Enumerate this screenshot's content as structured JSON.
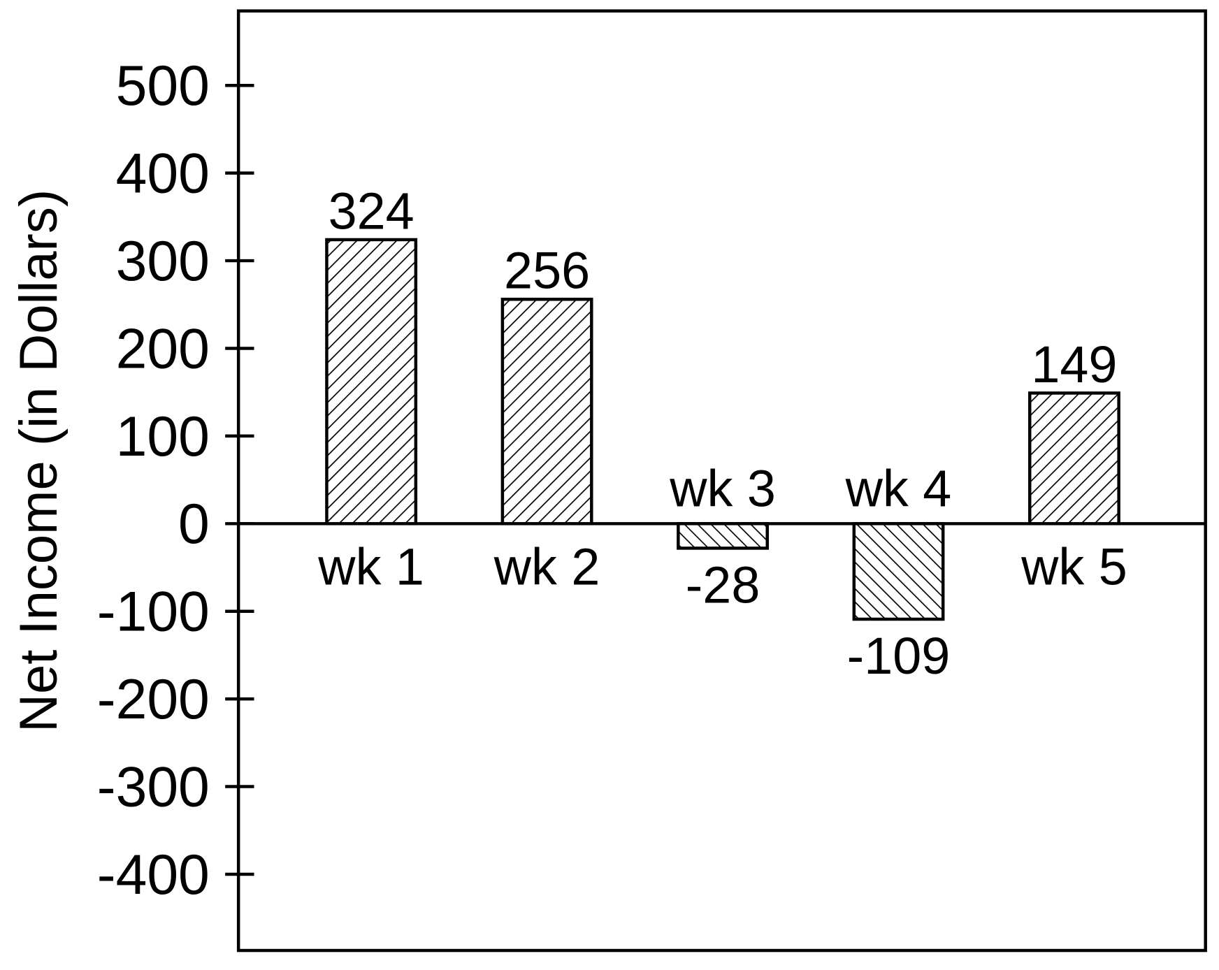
{
  "chart_data": {
    "type": "bar",
    "ylabel": "Net Income (in Dollars)",
    "categories": [
      "wk 1",
      "wk 2",
      "wk 3",
      "wk 4",
      "wk 5"
    ],
    "values": [
      324,
      256,
      -28,
      -109,
      149
    ],
    "color": "#000000",
    "ylim": [
      -487,
      585
    ],
    "yticks": [
      -400,
      -300,
      -200,
      -100,
      0,
      100,
      200,
      300,
      400,
      500
    ]
  }
}
